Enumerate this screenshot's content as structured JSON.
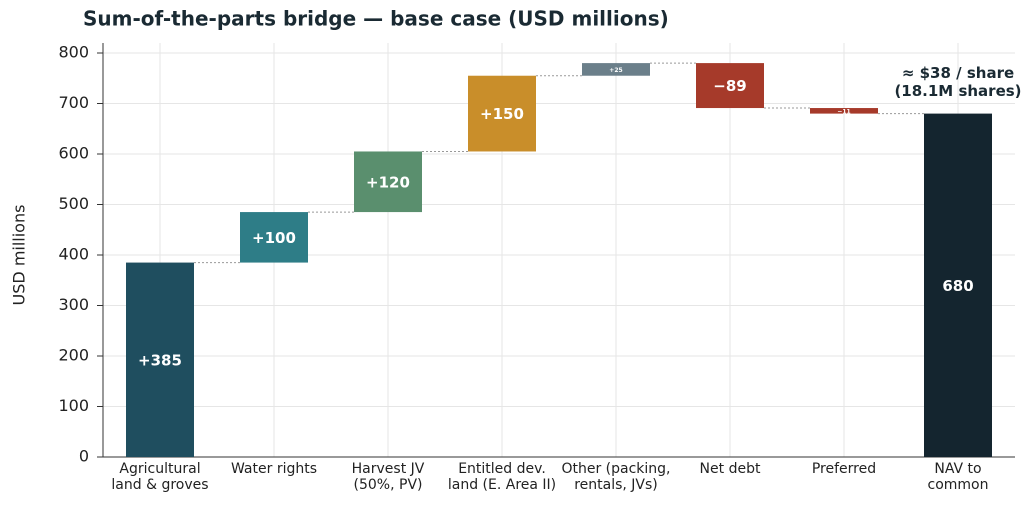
{
  "chart_data": {
    "type": "waterfall",
    "title": "Sum-of-the-parts bridge — base case (USD millions)",
    "y_label": "USD millions",
    "categories": [
      "Agricultural\nland & groves",
      "Water rights",
      "Harvest JV\n(50%, PV)",
      "Entitled dev.\nland (E. Area II)",
      "Other (packing,\nrentals, JVs)",
      "Net debt",
      "Preferred",
      "NAV to\ncommon"
    ],
    "values": [
      385,
      100,
      120,
      150,
      25,
      -89,
      -11,
      680
    ],
    "value_labels": [
      "+385",
      "+100",
      "+120",
      "+150",
      "+25",
      "−89",
      "−11",
      "680"
    ],
    "measure": [
      "relative",
      "relative",
      "relative",
      "relative",
      "relative",
      "relative",
      "relative",
      "total"
    ],
    "colors": [
      "#1f4e5f",
      "#2e7d87",
      "#5a8f6e",
      "#c98e2a",
      "#6b7f8a",
      "#a63a2a",
      "#a63a2a",
      "#14252f"
    ],
    "annotation": [
      "≈ $38 / share",
      "(18.1M shares)"
    ],
    "ylim": [
      0,
      800
    ],
    "yticks": [
      0,
      100,
      200,
      300,
      400,
      500,
      600,
      700,
      800
    ],
    "grid": true
  }
}
